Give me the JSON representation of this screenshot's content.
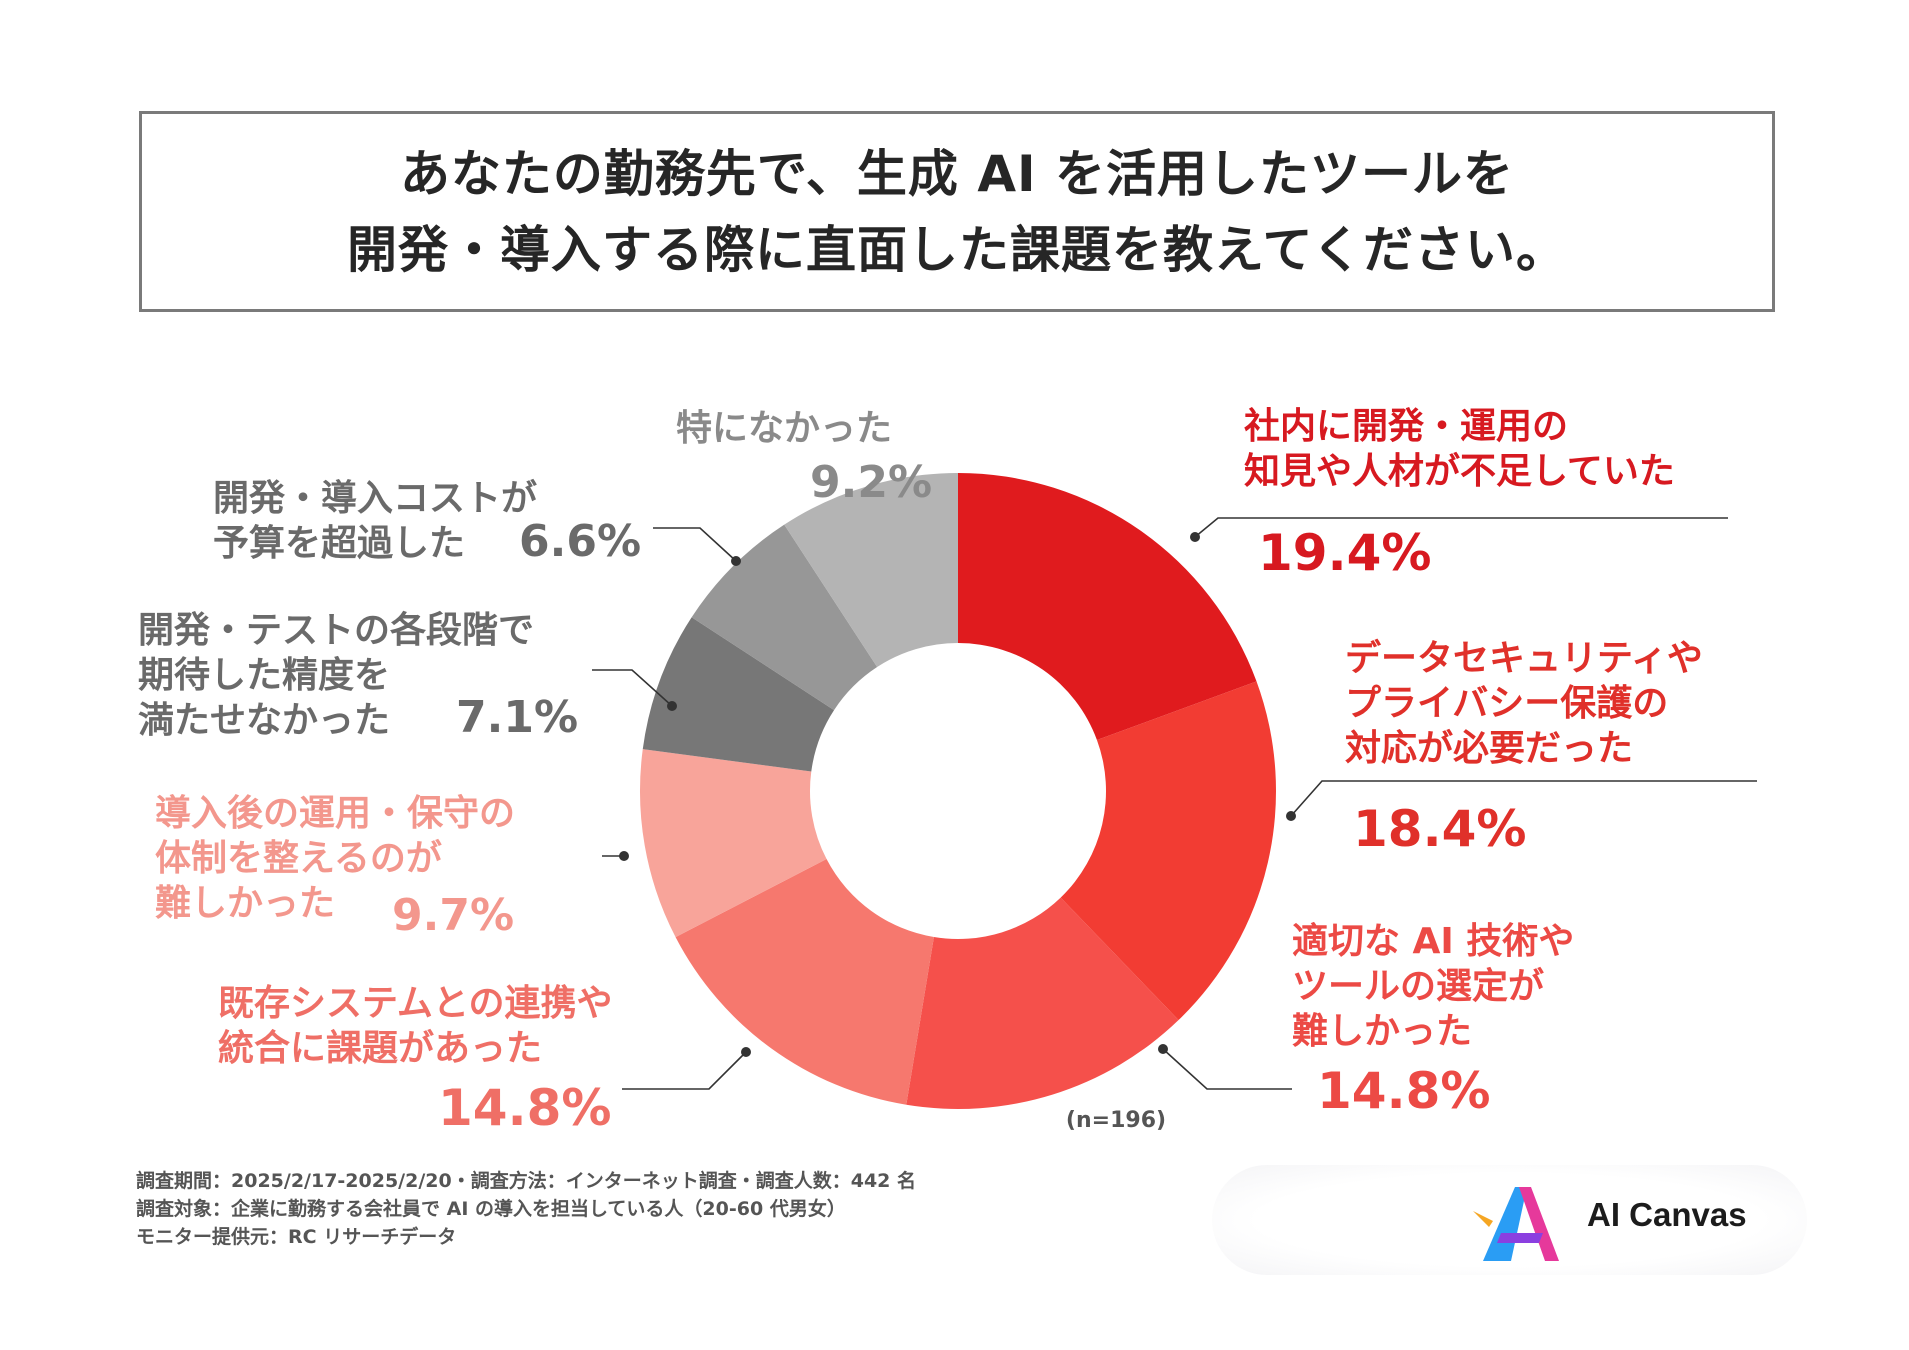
{
  "title": {
    "line1": "あなたの勤務先で、生成 AI を活用したツールを",
    "line2": "開発・導入する際に直面した課題を教えてください。"
  },
  "chart_data": {
    "type": "pie",
    "variant": "donut",
    "sample_note": "(n=196)",
    "start_angle": "12 o'clock, clockwise",
    "slices": [
      {
        "label_lines": [
          "社内に開発・運用の",
          "知見や人材が不足していた"
        ],
        "value": 19.4,
        "value_label": "19.4%",
        "color": "#e01b1e",
        "label_color": "#d71920"
      },
      {
        "label_lines": [
          "データセキュリティや",
          "プライバシー保護の",
          "対応が必要だった"
        ],
        "value": 18.4,
        "value_label": "18.4%",
        "color": "#f23c33",
        "label_color": "#e0302a"
      },
      {
        "label_lines": [
          "適切な AI 技術や",
          "ツールの選定が",
          "難しかった"
        ],
        "value": 14.8,
        "value_label": "14.8%",
        "color": "#f5504b",
        "label_color": "#ec4a45"
      },
      {
        "label_lines": [
          "既存システムとの連携や",
          "統合に課題があった"
        ],
        "value": 14.8,
        "value_label": "14.8%",
        "color": "#f6786e",
        "label_color": "#ef6f66"
      },
      {
        "label_lines": [
          "導入後の運用・保守の",
          "体制を整えるのが",
          "難しかった"
        ],
        "value": 9.7,
        "value_label": "9.7%",
        "color": "#f8a49a",
        "label_color": "#f3978d"
      },
      {
        "label_lines": [
          "開発・テストの各段階で",
          "期待した精度を",
          "満たせなかった"
        ],
        "value": 7.1,
        "value_label": "7.1%",
        "color": "#777777",
        "label_color": "#6a6a6a"
      },
      {
        "label_lines": [
          "開発・導入コストが",
          "予算を超過した"
        ],
        "value": 6.6,
        "value_label": "6.6%",
        "color": "#979797",
        "label_color": "#6a6a6a"
      },
      {
        "label_lines": [
          "特になかった"
        ],
        "value": 9.2,
        "value_label": "9.2%",
        "color": "#b4b4b4",
        "label_color": "#8a8a8a"
      }
    ]
  },
  "footer": {
    "line1": "調査期間：2025/2/17-2025/2/20・調査方法：インターネット調査・調査人数：442 名",
    "line2": "調査対象：企業に勤務する会社員で AI の導入を担当している人（20-60 代男女）",
    "line3": "モニター提供元：RC リサーチデータ"
  },
  "logo": {
    "text": "AI Canvas",
    "mark_colors": [
      "#2a9df4",
      "#e6399b",
      "#8b3fe0",
      "#f5a623"
    ]
  }
}
